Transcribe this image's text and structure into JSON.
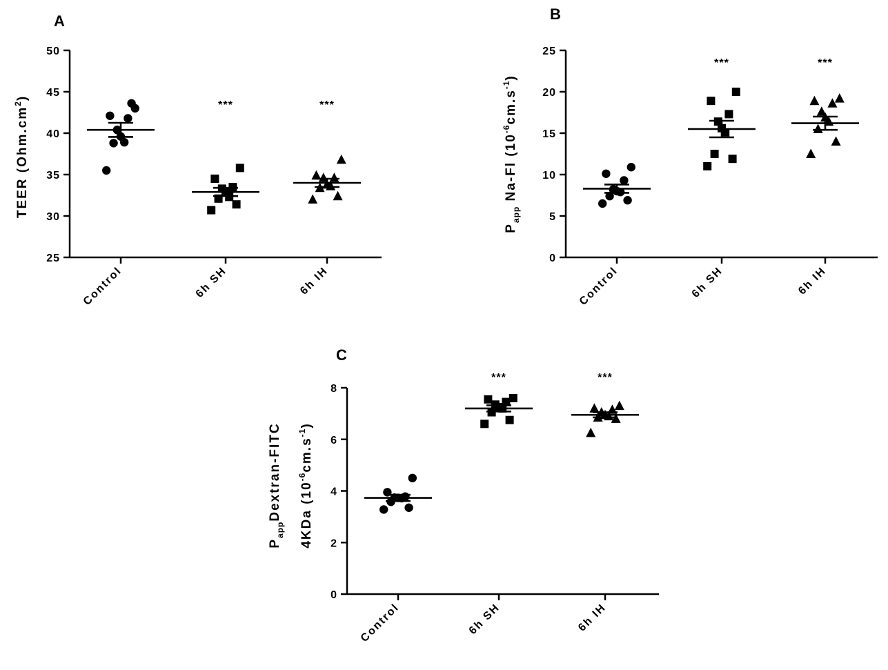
{
  "chart_data": [
    {
      "id": "A",
      "type": "scatter",
      "panel_label": "A",
      "ylabel": {
        "main": "TEER (Ohm.cm",
        "sup": "2",
        "end": ")"
      },
      "categories": [
        "Control",
        "6h SH",
        "6h IH"
      ],
      "ylim": [
        25,
        50
      ],
      "yticks": [
        25,
        30,
        35,
        40,
        45,
        50
      ],
      "markers": [
        "circle",
        "square",
        "triangle"
      ],
      "series": [
        {
          "category": "Control",
          "marker": "circle",
          "values": [
            43.0,
            42.1,
            41.8,
            40.4,
            39.6,
            38.9,
            38.8,
            43.6,
            35.5
          ],
          "mean": 40.4,
          "sem": 0.85
        },
        {
          "category": "6h SH",
          "marker": "square",
          "values": [
            35.8,
            34.5,
            33.5,
            33.3,
            32.9,
            32.3,
            32.1,
            31.4,
            30.7
          ],
          "mean": 32.9,
          "sem": 0.5
        },
        {
          "category": "6h IH",
          "marker": "triangle",
          "values": [
            36.8,
            34.9,
            34.6,
            34.6,
            33.8,
            33.6,
            33.4,
            32.4,
            32.0
          ],
          "mean": 34.0,
          "sem": 0.5
        }
      ],
      "significance": [
        "",
        "***",
        "***"
      ]
    },
    {
      "id": "B",
      "type": "scatter",
      "panel_label": "B",
      "ylabel": {
        "main": "P",
        "sub": "app",
        "mid": " Na-Fl (10",
        "sup": "-6",
        "mid2": "cm.s",
        "sup2": "-1",
        "end": ")"
      },
      "categories": [
        "Control",
        "6h SH",
        "6h IH"
      ],
      "ylim": [
        0,
        25
      ],
      "yticks": [
        0,
        5,
        10,
        15,
        20,
        25
      ],
      "markers": [
        "circle",
        "square",
        "triangle"
      ],
      "series": [
        {
          "category": "Control",
          "marker": "circle",
          "values": [
            10.9,
            10.1,
            9.3,
            8.2,
            8.0,
            7.9,
            7.4,
            6.9,
            6.5
          ],
          "mean": 8.3,
          "sem": 0.5
        },
        {
          "category": "6h SH",
          "marker": "square",
          "values": [
            20.0,
            18.9,
            17.3,
            16.4,
            15.6,
            15.1,
            12.5,
            11.9,
            11.0
          ],
          "mean": 15.5,
          "sem": 1.0
        },
        {
          "category": "6h IH",
          "marker": "triangle",
          "values": [
            19.2,
            18.9,
            18.6,
            17.6,
            16.9,
            16.4,
            15.5,
            14.0,
            12.5
          ],
          "mean": 16.2,
          "sem": 0.8
        }
      ],
      "significance": [
        "",
        "***",
        "***"
      ]
    },
    {
      "id": "C",
      "type": "scatter",
      "panel_label": "C",
      "ylabel": {
        "line1_main": "P",
        "line1_sub": "app",
        "line1_rest": "Dextran-FITC",
        "line2_main": "4KDa (10",
        "line2_sup": "-6",
        "line2_mid": "cm.s",
        "line2_sup2": "-1",
        "line2_end": ")"
      },
      "categories": [
        "Control",
        "6h SH",
        "6h IH"
      ],
      "ylim": [
        0,
        8
      ],
      "yticks": [
        0,
        2,
        4,
        6,
        8
      ],
      "markers": [
        "circle",
        "square",
        "triangle"
      ],
      "series": [
        {
          "category": "Control",
          "marker": "circle",
          "values": [
            4.5,
            3.95,
            3.78,
            3.74,
            3.73,
            3.72,
            3.58,
            3.35,
            3.28
          ],
          "mean": 3.73,
          "sem": 0.12
        },
        {
          "category": "6h SH",
          "marker": "square",
          "values": [
            7.6,
            7.55,
            7.45,
            7.35,
            7.25,
            7.2,
            7.05,
            6.75,
            6.6
          ],
          "mean": 7.2,
          "sem": 0.12
        },
        {
          "category": "6h IH",
          "marker": "triangle",
          "values": [
            7.3,
            7.2,
            7.15,
            7.05,
            6.95,
            6.9,
            6.85,
            6.8,
            6.25
          ],
          "mean": 6.95,
          "sem": 0.1
        }
      ],
      "significance": [
        "",
        "***",
        "***"
      ]
    }
  ]
}
